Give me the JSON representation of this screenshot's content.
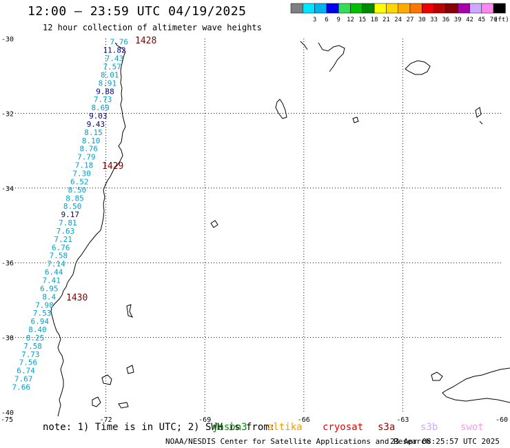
{
  "header": {
    "title": "12:00 – 23:59 UTC 04/19/2025",
    "subtitle": "12 hour collection of altimeter wave heights"
  },
  "legend": {
    "unit": "(ft)",
    "bins": [
      {
        "label": "",
        "color": "#7f7f7f"
      },
      {
        "label": "3",
        "color": "#00e5ff"
      },
      {
        "label": "6",
        "color": "#00b2ee"
      },
      {
        "label": "9",
        "color": "#0000ee"
      },
      {
        "label": "12",
        "color": "#33dd55"
      },
      {
        "label": "15",
        "color": "#00c000"
      },
      {
        "label": "18",
        "color": "#008a00"
      },
      {
        "label": "21",
        "color": "#ffff00"
      },
      {
        "label": "24",
        "color": "#ffd700"
      },
      {
        "label": "27",
        "color": "#ffaa00"
      },
      {
        "label": "30",
        "color": "#ff7700"
      },
      {
        "label": "33",
        "color": "#ee0000"
      },
      {
        "label": "36",
        "color": "#bb0000"
      },
      {
        "label": "39",
        "color": "#880000"
      },
      {
        "label": "42",
        "color": "#aa00aa"
      },
      {
        "label": "45",
        "color": "#ccaaff"
      },
      {
        "label": "70",
        "color": "#ff88ee"
      },
      {
        "label": "",
        "color": "#000000"
      }
    ]
  },
  "map": {
    "lon_range": [
      -75,
      -60
    ],
    "lat_range": [
      -40,
      -30
    ],
    "lon_ticks": [
      "-75",
      "-72",
      "-69",
      "-66",
      "-63",
      "-60"
    ],
    "lat_ticks": [
      "-30",
      "-32",
      "-34",
      "-36",
      "-38",
      "-40"
    ],
    "coastline_color": "#000000",
    "grid": "dotted"
  },
  "track": {
    "color_light": "#00a0d0",
    "color_dark": "#00008b",
    "points": [
      {
        "value": "7.76",
        "lat": -30.05,
        "shade": "light"
      },
      {
        "value": "11.82",
        "lat": -30.27,
        "shade": "dark"
      },
      {
        "value": "7.43",
        "lat": -30.49,
        "shade": "light"
      },
      {
        "value": "7.57",
        "lat": -30.71,
        "shade": "light"
      },
      {
        "value": "8.01",
        "lat": -30.93,
        "shade": "light"
      },
      {
        "value": "8.91",
        "lat": -31.15,
        "shade": "light"
      },
      {
        "value": "9.88",
        "lat": -31.37,
        "shade": "dark"
      },
      {
        "value": "7.73",
        "lat": -31.59,
        "shade": "light"
      },
      {
        "value": "8.69",
        "lat": -31.81,
        "shade": "light"
      },
      {
        "value": "9.03",
        "lat": -32.03,
        "shade": "dark"
      },
      {
        "value": "9.43",
        "lat": -32.25,
        "shade": "dark"
      },
      {
        "value": "8.15",
        "lat": -32.47,
        "shade": "light"
      },
      {
        "value": "8.10",
        "lat": -32.69,
        "shade": "light"
      },
      {
        "value": "8.76",
        "lat": -32.91,
        "shade": "light"
      },
      {
        "value": "7.79",
        "lat": -33.13,
        "shade": "light"
      },
      {
        "value": "7.18",
        "lat": -33.35,
        "shade": "light"
      },
      {
        "value": "7.30",
        "lat": -33.57,
        "shade": "light"
      },
      {
        "value": "6.52",
        "lat": -33.79,
        "shade": "light"
      },
      {
        "value": "8.50",
        "lat": -34.01,
        "shade": "light"
      },
      {
        "value": "8.85",
        "lat": -34.23,
        "shade": "light"
      },
      {
        "value": "8.50",
        "lat": -34.45,
        "shade": "light"
      },
      {
        "value": "9.17",
        "lat": -34.67,
        "shade": "dark"
      },
      {
        "value": "7.81",
        "lat": -34.89,
        "shade": "light"
      },
      {
        "value": "7.63",
        "lat": -35.11,
        "shade": "light"
      },
      {
        "value": "7.21",
        "lat": -35.33,
        "shade": "light"
      },
      {
        "value": "6.76",
        "lat": -35.55,
        "shade": "light"
      },
      {
        "value": "7.58",
        "lat": -35.77,
        "shade": "light"
      },
      {
        "value": "7.14",
        "lat": -35.99,
        "shade": "light"
      },
      {
        "value": "6.44",
        "lat": -36.21,
        "shade": "light"
      },
      {
        "value": "7.41",
        "lat": -36.43,
        "shade": "light"
      },
      {
        "value": "6.95",
        "lat": -36.65,
        "shade": "light"
      },
      {
        "value": "8.4",
        "lat": -36.87,
        "shade": "light"
      },
      {
        "value": "7.98",
        "lat": -37.09,
        "shade": "light"
      },
      {
        "value": "7.53",
        "lat": -37.31,
        "shade": "light"
      },
      {
        "value": "6.94",
        "lat": -37.53,
        "shade": "light"
      },
      {
        "value": "8.40",
        "lat": -37.75,
        "shade": "light"
      },
      {
        "value": "8.25",
        "lat": -37.97,
        "shade": "light"
      },
      {
        "value": "7.58",
        "lat": -38.19,
        "shade": "light"
      },
      {
        "value": "7.73",
        "lat": -38.41,
        "shade": "light"
      },
      {
        "value": "7.56",
        "lat": -38.63,
        "shade": "light"
      },
      {
        "value": "6.74",
        "lat": -38.85,
        "shade": "light"
      },
      {
        "value": "7.67",
        "lat": -39.07,
        "shade": "light"
      },
      {
        "value": "7.66",
        "lat": -39.29,
        "shade": "light"
      }
    ]
  },
  "time_labels": {
    "color": "#800000",
    "items": [
      "1428",
      "1429",
      "1430"
    ]
  },
  "note": {
    "text": "note:  1) Time is in UTC; 2) SWH is from:",
    "satellites": [
      {
        "name": "jason3",
        "color": "#008a00"
      },
      {
        "name": "altika",
        "color": "#ff9900"
      },
      {
        "name": "cryosat",
        "color": "#ee0000"
      },
      {
        "name": "s3a",
        "color": "#990000"
      },
      {
        "name": "s3b",
        "color": "#ccaaff"
      },
      {
        "name": "swot",
        "color": "#ff99ee"
      }
    ]
  },
  "footer": {
    "credit": "NOAA/NESDIS Center for Satellite Applications and Research",
    "timestamp": "23 Apr 08:25:57 UTC 2025"
  }
}
